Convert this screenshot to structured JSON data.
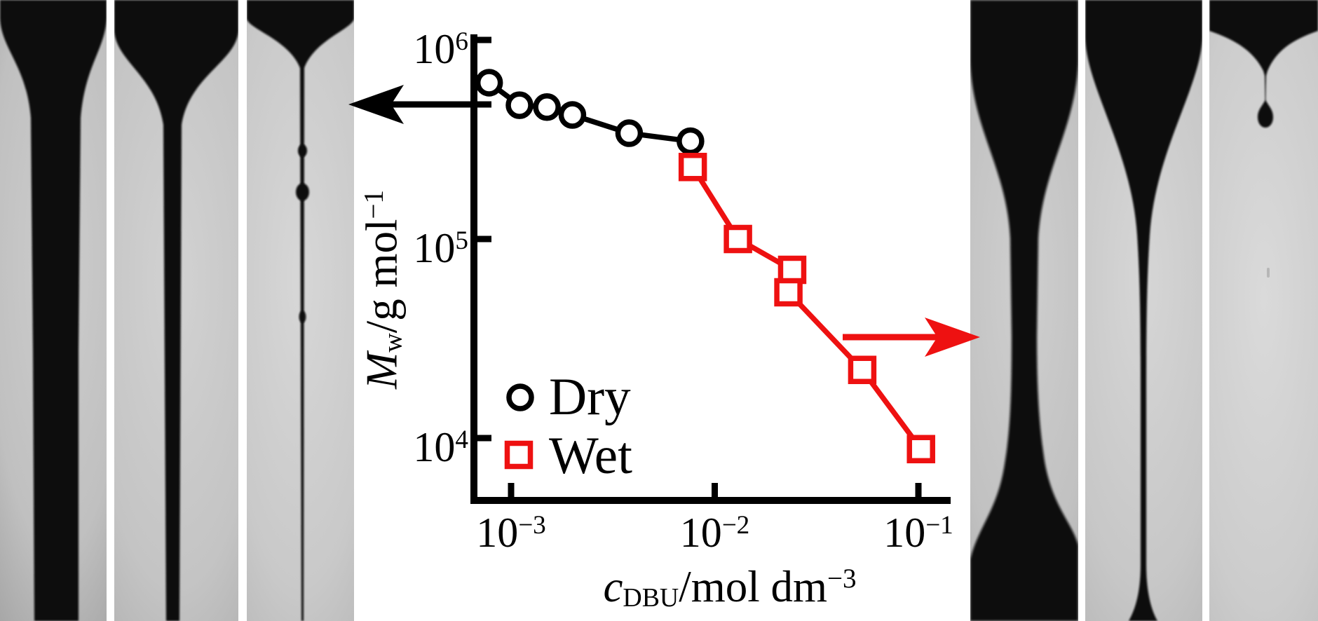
{
  "colors": {
    "dry": "#000000",
    "wet": "#ee1111",
    "photo_black": "#0a0a0a",
    "background": "#ffffff"
  },
  "chart_data": {
    "type": "scatter",
    "title": "",
    "x_axis": {
      "label_parts": [
        {
          "t": "c",
          "s": "i"
        },
        {
          "t": "DBU",
          "s": "sub"
        },
        {
          "t": "/mol dm",
          "s": "r"
        },
        {
          "t": "−3",
          "s": "sup"
        }
      ],
      "scale": "log",
      "tick_exponents": [
        -3,
        -2,
        -1
      ],
      "range": [
        0.00066,
        0.145
      ]
    },
    "y_axis": {
      "label_parts": [
        {
          "t": "M",
          "s": "i"
        },
        {
          "t": "w",
          "s": "sub"
        },
        {
          "t": "/g mol",
          "s": "r"
        },
        {
          "t": "−1",
          "s": "sup"
        }
      ],
      "scale": "log",
      "tick_exponents": [
        6,
        5,
        4
      ],
      "range": [
        4900,
        1070000
      ]
    },
    "series": [
      {
        "name": "Dry",
        "marker": "circle",
        "color": "#000000",
        "points": [
          {
            "c": 0.00078,
            "M": 610000
          },
          {
            "c": 0.0011,
            "M": 470000
          },
          {
            "c": 0.0015,
            "M": 460000
          },
          {
            "c": 0.002,
            "M": 420000
          },
          {
            "c": 0.0038,
            "M": 340000
          },
          {
            "c": 0.0076,
            "M": 310000
          }
        ]
      },
      {
        "name": "Wet",
        "marker": "square",
        "color": "#ee1111",
        "points": [
          {
            "c": 0.0078,
            "M": 230000
          },
          {
            "c": 0.013,
            "M": 100000
          },
          {
            "c": 0.024,
            "M": 70000
          },
          {
            "c": 0.023,
            "M": 54000
          },
          {
            "c": 0.053,
            "M": 22000
          },
          {
            "c": 0.103,
            "M": 8800
          }
        ]
      }
    ],
    "legend": {
      "position": "inside-bottom-left"
    },
    "annotations": [
      {
        "name": "arrow-to-dry-photos",
        "direction": "left",
        "color": "#000000"
      },
      {
        "name": "arrow-to-wet-photos",
        "direction": "right",
        "color": "#ee1111"
      }
    ]
  },
  "photos": {
    "left": [
      {
        "name": "dry-thick-filament-photo"
      },
      {
        "name": "dry-thin-filament-photo"
      },
      {
        "name": "dry-beaded-filament-photo"
      }
    ],
    "right": [
      {
        "name": "wet-necking-filament-photo"
      },
      {
        "name": "wet-ultrathin-filament-photo"
      },
      {
        "name": "wet-droplet-pinchoff-photo"
      }
    ]
  }
}
